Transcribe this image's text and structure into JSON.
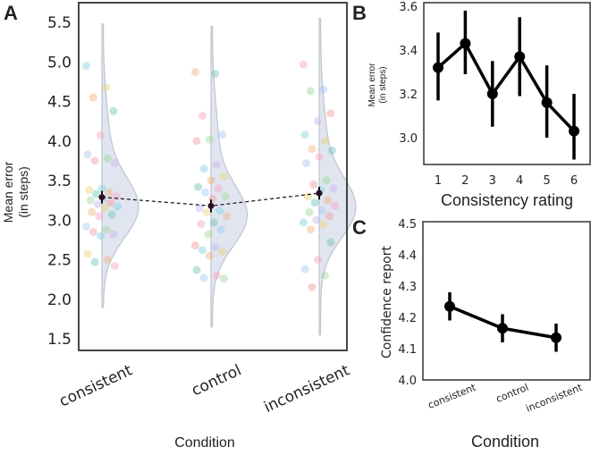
{
  "chart_data": [
    {
      "panel": "A",
      "type": "violin+scatter+pointplot",
      "xlabel": "Condition",
      "ylabel": [
        "Mean error",
        "(in steps)"
      ],
      "ylim": [
        1.5,
        5.6
      ],
      "yticks": [
        "1.5",
        "2.0",
        "2.5",
        "3.0",
        "3.5",
        "4.0",
        "4.5",
        "5.0",
        "5.5"
      ],
      "categories": [
        "consistent",
        "control",
        "inconsistent"
      ],
      "means": [
        3.29,
        3.18,
        3.34
      ],
      "errors": [
        0.08,
        0.08,
        0.08
      ],
      "violin_range": [
        [
          1.9,
          5.48
        ],
        [
          1.65,
          5.45
        ],
        [
          1.55,
          5.55
        ]
      ],
      "violin_center": [
        3.15,
        3.05,
        3.15
      ],
      "points": [
        [
          4.95,
          4.68,
          4.55,
          4.38,
          4.07,
          3.83,
          3.78,
          3.75,
          3.72,
          3.4,
          3.38,
          3.35,
          3.33,
          3.3,
          3.27,
          3.25,
          3.22,
          3.2,
          3.17,
          3.15,
          3.1,
          3.07,
          3.05,
          2.92,
          2.88,
          2.85,
          2.82,
          2.8,
          2.57,
          2.5,
          2.47,
          2.42
        ],
        [
          4.87,
          4.85,
          4.32,
          4.08,
          4.02,
          4.0,
          3.7,
          3.65,
          3.55,
          3.5,
          3.42,
          3.4,
          3.35,
          3.3,
          3.27,
          3.15,
          3.12,
          3.1,
          3.05,
          2.97,
          2.95,
          2.88,
          2.82,
          2.68,
          2.66,
          2.62,
          2.6,
          2.55,
          2.37,
          2.3,
          2.27,
          2.26
        ],
        [
          4.97,
          4.65,
          4.63,
          4.35,
          4.25,
          4.08,
          4.0,
          3.9,
          3.88,
          3.8,
          3.72,
          3.5,
          3.45,
          3.4,
          3.38,
          3.3,
          3.25,
          3.22,
          3.18,
          3.12,
          3.1,
          3.05,
          3.0,
          2.97,
          2.95,
          2.88,
          2.72,
          2.5,
          2.38,
          2.3,
          2.15
        ]
      ]
    },
    {
      "panel": "B",
      "type": "line",
      "xlabel": "Consistency rating",
      "ylabel": [
        "Mean error",
        "(in steps)"
      ],
      "ylim": [
        2.86,
        3.62
      ],
      "yticks": [
        "3.0",
        "3.2",
        "3.4",
        "3.6"
      ],
      "x": [
        "1",
        "2",
        "3",
        "4",
        "5",
        "6"
      ],
      "values": [
        3.32,
        3.43,
        3.2,
        3.37,
        3.16,
        3.03
      ],
      "ci_low": [
        3.17,
        3.29,
        3.05,
        3.19,
        3.0,
        2.9
      ],
      "ci_high": [
        3.48,
        3.58,
        3.35,
        3.55,
        3.33,
        3.2
      ]
    },
    {
      "panel": "C",
      "type": "line",
      "xlabel": "Condition",
      "ylabel": "Confidence report",
      "ylim": [
        4.0,
        4.5
      ],
      "yticks": [
        "4.0",
        "4.1",
        "4.2",
        "4.3",
        "4.4",
        "4.5"
      ],
      "categories": [
        "consistent",
        "control",
        "inconsistent"
      ],
      "values": [
        4.235,
        4.165,
        4.135
      ],
      "ci_low": [
        4.19,
        4.12,
        4.09
      ],
      "ci_high": [
        4.28,
        4.21,
        4.18
      ]
    }
  ],
  "panel_labels": [
    "A",
    "B",
    "C"
  ],
  "colors": {
    "violin": "#dde3ee",
    "violin_edge": "#b8bfcc",
    "line": "#000000",
    "points": [
      "#7fd3e0",
      "#f0b27a",
      "#f7a1c4",
      "#9ed89a",
      "#c9b3f0",
      "#e8d27a",
      "#6cc4b4",
      "#a7c7f2",
      "#f29a9a"
    ]
  }
}
